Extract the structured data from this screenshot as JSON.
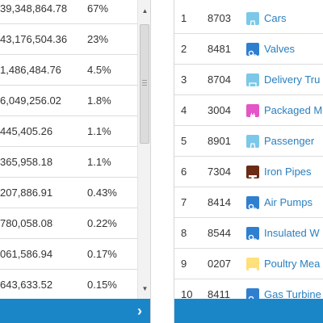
{
  "left_table": {
    "rows": [
      {
        "amount": "39,348,864.78",
        "pct": "67%"
      },
      {
        "amount": "43,176,504.36",
        "pct": "23%"
      },
      {
        "amount": "1,486,484.76",
        "pct": "4.5%"
      },
      {
        "amount": "6,049,256.02",
        "pct": "1.8%"
      },
      {
        "amount": "445,405.26",
        "pct": "1.1%"
      },
      {
        "amount": "365,958.18",
        "pct": "1.1%"
      },
      {
        "amount": "207,886.91",
        "pct": "0.43%"
      },
      {
        "amount": "780,058.08",
        "pct": "0.22%"
      },
      {
        "amount": "061,586.94",
        "pct": "0.17%"
      },
      {
        "amount": "643,633.52",
        "pct": "0.15%"
      }
    ],
    "scroll_up_glyph": "▲",
    "scroll_down_glyph": "▼",
    "next_glyph": "›"
  },
  "right_table": {
    "rows": [
      {
        "rank": "1",
        "code": "8703",
        "product": "Cars",
        "icon": "car-icon",
        "icon_color": "#7cc8e8"
      },
      {
        "rank": "2",
        "code": "8481",
        "product": "Valves",
        "icon": "machinery-icon",
        "icon_color": "#2f7fd0"
      },
      {
        "rank": "3",
        "code": "8704",
        "product": "Delivery Tru",
        "icon": "truck-icon",
        "icon_color": "#7cc8e8"
      },
      {
        "rank": "4",
        "code": "3004",
        "product": "Packaged M",
        "icon": "chemicals-icon",
        "icon_color": "#e455c8"
      },
      {
        "rank": "5",
        "code": "8901",
        "product": "Passenger",
        "icon": "ship-icon",
        "icon_color": "#7cc8e8"
      },
      {
        "rank": "6",
        "code": "7304",
        "product": "Iron Pipes",
        "icon": "metal-icon",
        "icon_color": "#6b2b14"
      },
      {
        "rank": "7",
        "code": "8414",
        "product": "Air Pumps",
        "icon": "machinery-icon",
        "icon_color": "#2f7fd0"
      },
      {
        "rank": "8",
        "code": "8544",
        "product": "Insulated W",
        "icon": "machinery-icon",
        "icon_color": "#2f7fd0"
      },
      {
        "rank": "9",
        "code": "0207",
        "product": "Poultry Mea",
        "icon": "animal-product-icon",
        "icon_color": "#ffe07a"
      },
      {
        "rank": "10",
        "code": "8411",
        "product": "Gas Turbine",
        "icon": "machinery-icon",
        "icon_color": "#2f7fd0"
      }
    ]
  },
  "colors": {
    "footer_bar": "#1a86c8",
    "product_link": "#2a7fc0"
  }
}
